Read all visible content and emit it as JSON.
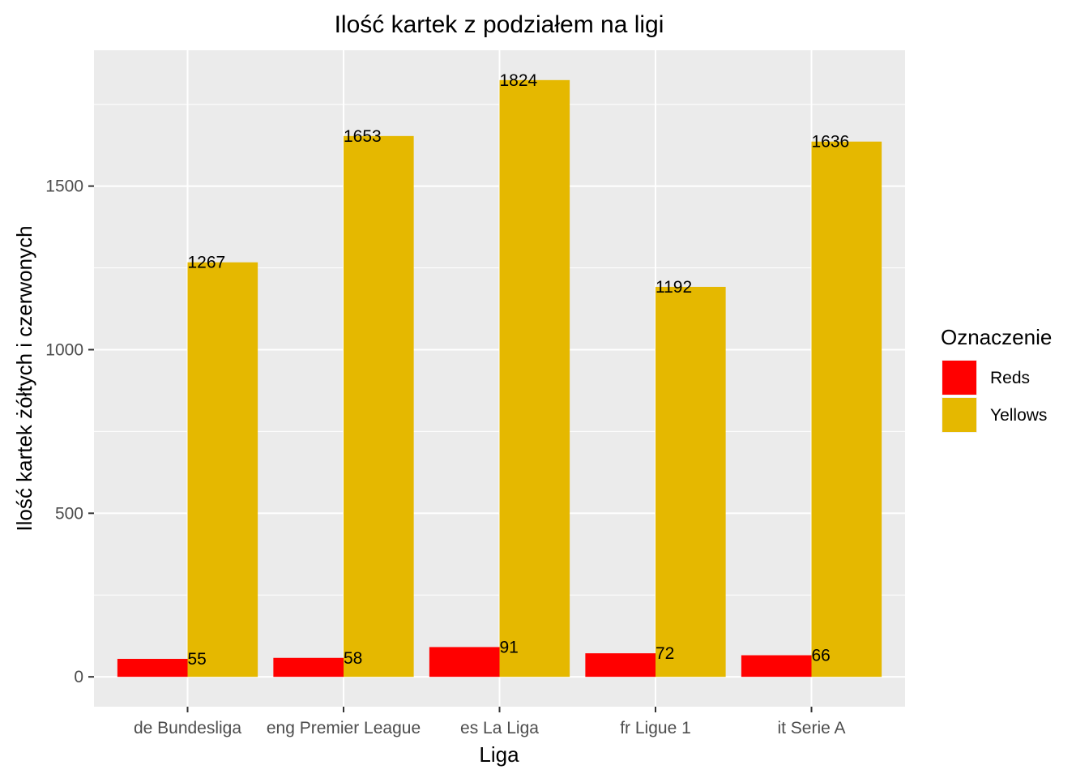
{
  "chart_data": {
    "type": "bar",
    "title": "Ilość kartek z podziałem na ligi",
    "xlabel": "Liga",
    "ylabel": "Ilość kartek żółtych i czerwonych",
    "categories": [
      "de Bundesliga",
      "eng Premier League",
      "es La Liga",
      "fr Ligue 1",
      "it Serie A"
    ],
    "series": [
      {
        "name": "Reds",
        "color": "#ff0000",
        "values": [
          55,
          58,
          91,
          72,
          66
        ]
      },
      {
        "name": "Yellows",
        "color": "#e5b800",
        "values": [
          1267,
          1653,
          1824,
          1192,
          1636
        ]
      }
    ],
    "ylim": [
      -91.2,
      1915.2
    ],
    "yticks": [
      0,
      500,
      1000,
      1500
    ],
    "grid": true,
    "legend": {
      "title": "Oznaczenie",
      "position": "right"
    },
    "panel_background": "#ebebeb"
  }
}
